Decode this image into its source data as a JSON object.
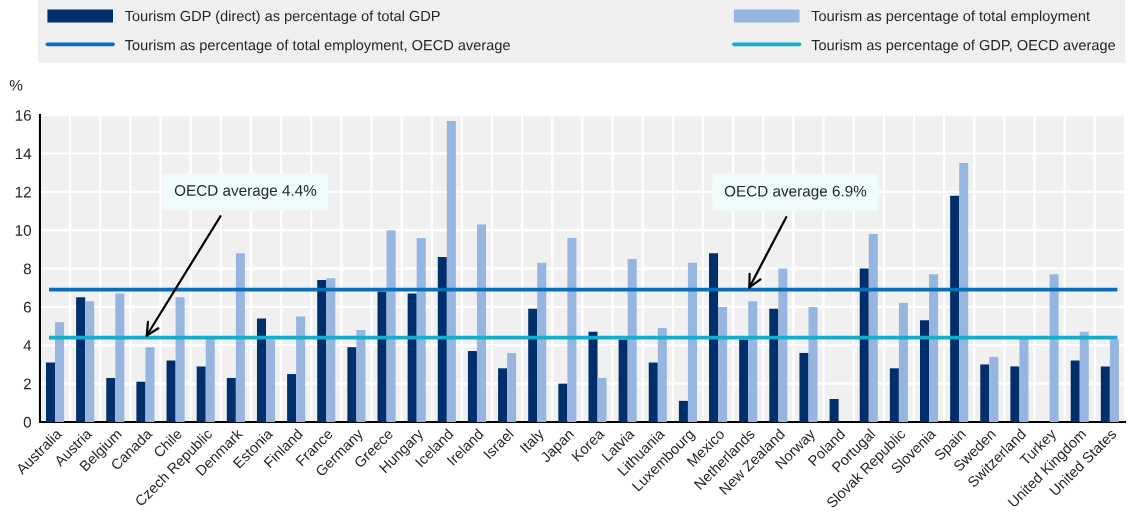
{
  "chart_data": {
    "type": "bar",
    "ylabel": "%",
    "categories": [
      "Australia",
      "Austria",
      "Belgium",
      "Canada",
      "Chile",
      "Czech Republic",
      "Denmark",
      "Estonia",
      "Finland",
      "France",
      "Germany",
      "Greece",
      "Hungary",
      "Iceland",
      "Ireland",
      "Israel",
      "Italy",
      "Japan",
      "Korea",
      "Latvia",
      "Lithuania",
      "Luxembourg",
      "Mexico",
      "Netherlands",
      "New Zealand",
      "Norway",
      "Poland",
      "Portugal",
      "Slovak Republic",
      "Slovenia",
      "Spain",
      "Sweden",
      "Switzerland",
      "Turkey",
      "United Kingdom",
      "United States"
    ],
    "series": [
      {
        "name": "Tourism GDP (direct) as percentage of total GDP",
        "color": "#002f6c",
        "values": [
          3.1,
          6.5,
          2.3,
          2.1,
          3.2,
          2.9,
          2.3,
          5.4,
          2.5,
          7.4,
          3.9,
          6.8,
          6.7,
          8.6,
          3.7,
          2.8,
          5.9,
          2.0,
          4.7,
          4.3,
          3.1,
          1.1,
          8.8,
          4.3,
          5.9,
          3.6,
          1.2,
          8.0,
          2.8,
          5.3,
          11.8,
          3.0,
          2.9,
          null,
          3.2,
          2.9
        ]
      },
      {
        "name": "Tourism as percentage of total employment",
        "color": "#96b6e0",
        "values": [
          5.2,
          6.3,
          6.7,
          3.9,
          6.5,
          4.4,
          8.8,
          4.3,
          5.5,
          7.5,
          4.8,
          10.0,
          9.6,
          15.7,
          10.3,
          3.6,
          8.3,
          9.6,
          2.3,
          8.5,
          4.9,
          8.3,
          6.0,
          6.3,
          8.0,
          6.0,
          null,
          9.8,
          6.2,
          7.7,
          13.5,
          3.4,
          4.4,
          7.7,
          4.7,
          4.3
        ]
      }
    ],
    "ylim": [
      0,
      16
    ],
    "yticks": [
      0,
      2,
      4,
      6,
      8,
      10,
      12,
      14,
      16
    ],
    "grid": true,
    "legend": "top",
    "ref_lines": [
      {
        "axis": "y",
        "value": 6.9,
        "label": "Tourism as percentage of total employment, OECD average",
        "color": "#0a6eb9"
      },
      {
        "axis": "y",
        "value": 4.4,
        "label": "Tourism as percentage of GDP, OECD average",
        "color": "#12aecb"
      }
    ],
    "annotations": [
      {
        "text": "OECD average 4.4%",
        "x": "Canada",
        "y": 4.4
      },
      {
        "text": "OECD average 6.9%",
        "x": "Netherlands",
        "y": 6.9
      }
    ]
  }
}
